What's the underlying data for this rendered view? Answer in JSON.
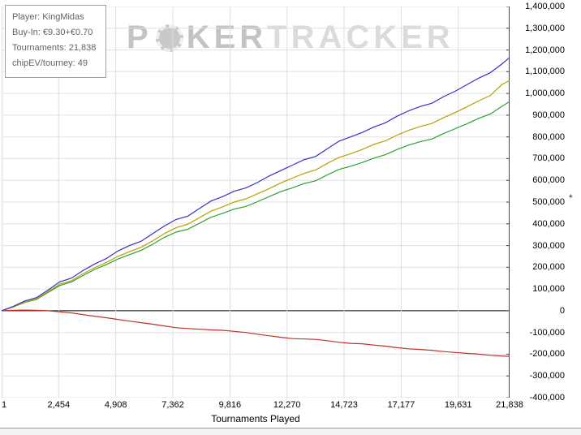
{
  "info_box": {
    "lines": [
      "Player: KingMidas",
      "Buy-In: €9.30+€0.70",
      "Tournaments: 21,838",
      "chipEV/tourney: 49"
    ]
  },
  "watermark": {
    "part1": "P",
    "part2": "KER",
    "part3": "TRACKER"
  },
  "chart_data": {
    "type": "line",
    "title": "",
    "xlabel": "Tournaments Played",
    "ylabel": "*",
    "legend": "none",
    "grid": true,
    "gridline_color": "#e0e0e0",
    "zero_line_color": "#000000",
    "axis_color": "#444444",
    "xlim": [
      1,
      21838
    ],
    "ylim": [
      -400000,
      1400000
    ],
    "x_tick_values": [
      1,
      2454,
      4908,
      7362,
      9816,
      12270,
      14723,
      17177,
      19631,
      21838
    ],
    "x_tick_labels": [
      "1",
      "2,454",
      "4,908",
      "7,362",
      "9,816",
      "12,270",
      "14,723",
      "17,177",
      "19,631",
      "21,838"
    ],
    "y_tick_values": [
      1400000,
      1300000,
      1200000,
      1100000,
      1000000,
      900000,
      800000,
      700000,
      600000,
      500000,
      400000,
      300000,
      200000,
      100000,
      0,
      -100000,
      -200000,
      -300000,
      -400000
    ],
    "y_tick_labels": [
      "1,400,000",
      "1,300,000",
      "1,200,000",
      "1,100,000",
      "1,000,000",
      "900,000",
      "800,000",
      "700,000",
      "600,000",
      "500,000",
      "400,000",
      "300,000",
      "200,000",
      "100,000",
      "0",
      "-100,000",
      "-200,000",
      "-300,000",
      "-400,000"
    ],
    "x": [
      1,
      500,
      1000,
      1500,
      2000,
      2500,
      3000,
      3500,
      4000,
      4500,
      5000,
      5500,
      6000,
      6500,
      7000,
      7500,
      8000,
      8500,
      9000,
      9500,
      10000,
      10500,
      11000,
      11500,
      12000,
      12500,
      13000,
      13500,
      14000,
      14500,
      15000,
      15500,
      16000,
      16500,
      17000,
      17500,
      18000,
      18500,
      19000,
      19500,
      20000,
      20500,
      21000,
      21500,
      21838
    ],
    "series": [
      {
        "name": "blue-line",
        "color": "#3232c8",
        "values": [
          0,
          20000,
          45000,
          60000,
          95000,
          133000,
          150000,
          185000,
          215000,
          240000,
          275000,
          300000,
          320000,
          355000,
          390000,
          420000,
          435000,
          470000,
          505000,
          525000,
          550000,
          565000,
          590000,
          620000,
          645000,
          670000,
          695000,
          710000,
          745000,
          780000,
          800000,
          820000,
          845000,
          865000,
          895000,
          920000,
          940000,
          955000,
          985000,
          1010000,
          1040000,
          1070000,
          1095000,
          1135000,
          1165000
        ]
      },
      {
        "name": "yellow-line",
        "color": "#b8a000",
        "values": [
          0,
          18000,
          40000,
          55000,
          88000,
          122000,
          138000,
          170000,
          198000,
          222000,
          250000,
          272000,
          292000,
          322000,
          355000,
          382000,
          398000,
          428000,
          458000,
          478000,
          500000,
          515000,
          538000,
          562000,
          588000,
          610000,
          632000,
          648000,
          678000,
          705000,
          722000,
          742000,
          765000,
          782000,
          808000,
          830000,
          848000,
          862000,
          888000,
          912000,
          938000,
          965000,
          990000,
          1040000,
          1060000
        ]
      },
      {
        "name": "green-line",
        "color": "#2fa02f",
        "values": [
          0,
          17000,
          38000,
          52000,
          84000,
          116000,
          132000,
          162000,
          190000,
          212000,
          238000,
          258000,
          278000,
          306000,
          338000,
          362000,
          375000,
          402000,
          430000,
          448000,
          468000,
          480000,
          502000,
          525000,
          548000,
          565000,
          585000,
          598000,
          625000,
          650000,
          665000,
          682000,
          702000,
          718000,
          742000,
          762000,
          778000,
          790000,
          815000,
          838000,
          860000,
          885000,
          905000,
          940000,
          962000
        ]
      },
      {
        "name": "red-line",
        "color": "#c03028",
        "values": [
          0,
          2000,
          3000,
          2000,
          0,
          -5000,
          -10000,
          -18000,
          -25000,
          -32000,
          -40000,
          -48000,
          -55000,
          -62000,
          -70000,
          -78000,
          -82000,
          -85000,
          -88000,
          -90000,
          -95000,
          -100000,
          -108000,
          -115000,
          -122000,
          -128000,
          -130000,
          -132000,
          -138000,
          -145000,
          -150000,
          -152000,
          -158000,
          -163000,
          -170000,
          -175000,
          -178000,
          -182000,
          -188000,
          -192000,
          -196000,
          -200000,
          -205000,
          -208000,
          -210000
        ]
      }
    ]
  }
}
